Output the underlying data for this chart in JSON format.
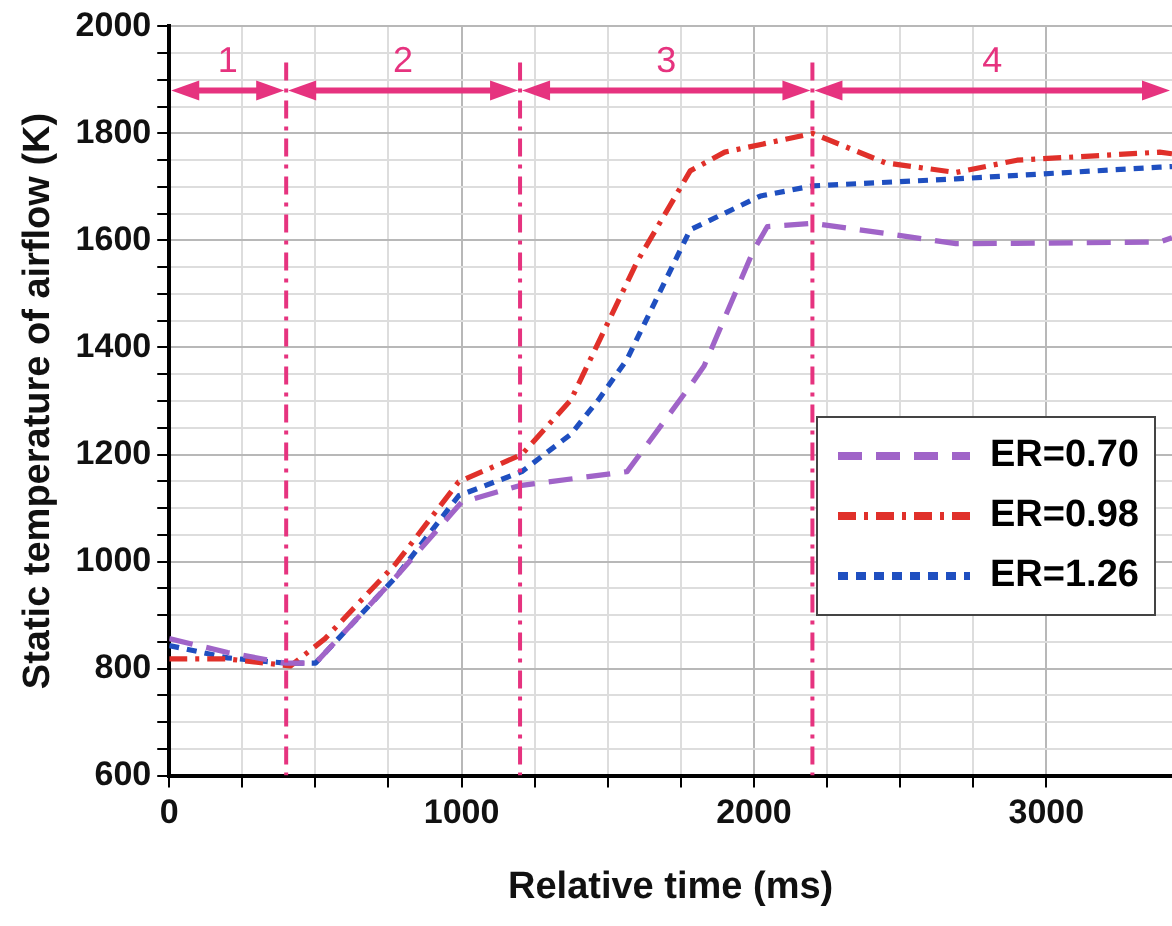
{
  "chart_data": {
    "type": "line",
    "xlabel": "Relative time (ms)",
    "ylabel": "Static temperature of airflow (K)",
    "xlim": [
      0,
      3430
    ],
    "xticks": [
      0,
      1000,
      2000,
      3000
    ],
    "ylim": [
      600,
      2000
    ],
    "yticks": [
      600,
      800,
      1000,
      1200,
      1400,
      1600,
      1800,
      2000
    ],
    "grid": true,
    "legend": "right",
    "marker": "none",
    "series": [
      {
        "name": "ER=0.70",
        "color": "#a064c8",
        "line_style": "dashed",
        "x": [
          0,
          200,
          400,
          500,
          775,
          1000,
          1200,
          1566,
          1782,
          1830,
          1998,
          2046,
          2201,
          2453,
          2691,
          3000,
          3388,
          3430
        ],
        "values": [
          856,
          830,
          810,
          810,
          971,
          1111,
          1142,
          1168,
          1328,
          1366,
          1581,
          1626,
          1632,
          1613,
          1594,
          1595,
          1597,
          1605
        ]
      },
      {
        "name": "ER=0.98",
        "color": "#e0302a",
        "line_style": "dashdot",
        "x": [
          0,
          200,
          415,
          533,
          775,
          990,
          1206,
          1374,
          1600,
          1782,
          1900,
          2201,
          2450,
          2691,
          2900,
          3388,
          3430
        ],
        "values": [
          818,
          818,
          805,
          856,
          996,
          1149,
          1200,
          1302,
          1560,
          1730,
          1765,
          1800,
          1745,
          1727,
          1750,
          1765,
          1762
        ]
      },
      {
        "name": "ER=1.26",
        "color": "#1f4fc0",
        "line_style": "dotted",
        "x": [
          0,
          200,
          400,
          500,
          775,
          990,
          1206,
          1374,
          1468,
          1566,
          1782,
          2022,
          2201,
          2691,
          3388,
          3430
        ],
        "values": [
          843,
          820,
          810,
          810,
          971,
          1123,
          1168,
          1238,
          1302,
          1378,
          1620,
          1683,
          1702,
          1715,
          1737,
          1738
        ]
      }
    ],
    "ref_lines": [
      {
        "axis": "x",
        "value": 400,
        "color": "#e6337f",
        "line_style": "dashdot"
      },
      {
        "axis": "x",
        "value": 1200,
        "color": "#e6337f",
        "line_style": "dashdot"
      },
      {
        "axis": "x",
        "value": 2200,
        "color": "#e6337f",
        "line_style": "dashdot"
      }
    ],
    "annotations": [
      "1",
      "2",
      "3",
      "4"
    ]
  }
}
